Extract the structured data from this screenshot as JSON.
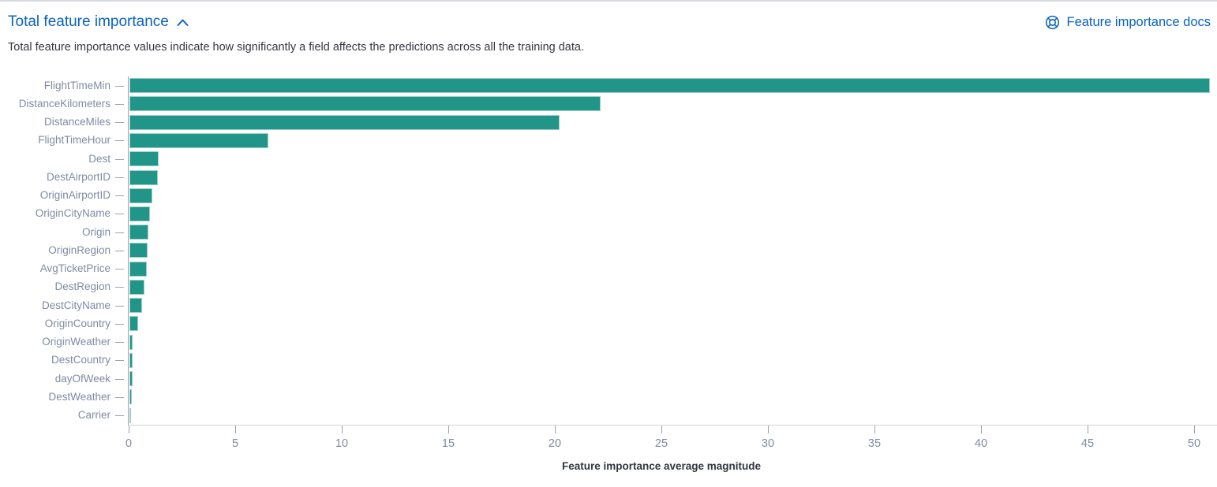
{
  "header": {
    "title": "Total feature importance",
    "docs_link_label": "Feature importance docs"
  },
  "description": "Total feature importance values indicate how significantly a field affects the predictions across all the training data.",
  "colors": {
    "bar": "#219587",
    "link_blue": "#0b63c1",
    "axis_label": "#7f8ba3",
    "axis_line": "#cdd3de",
    "tick_line": "#98a2b3",
    "axis_title_text": "#32363e"
  },
  "chart_data": {
    "type": "bar",
    "orientation": "horizontal",
    "title": "",
    "xlabel": "Feature importance average magnitude",
    "ylabel": "",
    "categories": [
      "FlightTimeMin",
      "DistanceKilometers",
      "DistanceMiles",
      "FlightTimeHour",
      "Dest",
      "DestAirportID",
      "OriginAirportID",
      "OriginCityName",
      "Origin",
      "OriginRegion",
      "AvgTicketPrice",
      "DestRegion",
      "DestCityName",
      "OriginCountry",
      "OriginWeather",
      "DestCountry",
      "dayOfWeek",
      "DestWeather",
      "Carrier"
    ],
    "values": [
      50.7,
      22.1,
      20.2,
      6.5,
      1.36,
      1.33,
      1.08,
      0.97,
      0.9,
      0.86,
      0.83,
      0.7,
      0.6,
      0.42,
      0.16,
      0.15,
      0.15,
      0.12,
      0.03
    ],
    "x_ticks": [
      0,
      5,
      10,
      15,
      20,
      25,
      30,
      35,
      40,
      45,
      50
    ],
    "xlim": [
      0,
      50.7
    ],
    "grid": false,
    "legend": "none",
    "series_color": "#219587"
  }
}
